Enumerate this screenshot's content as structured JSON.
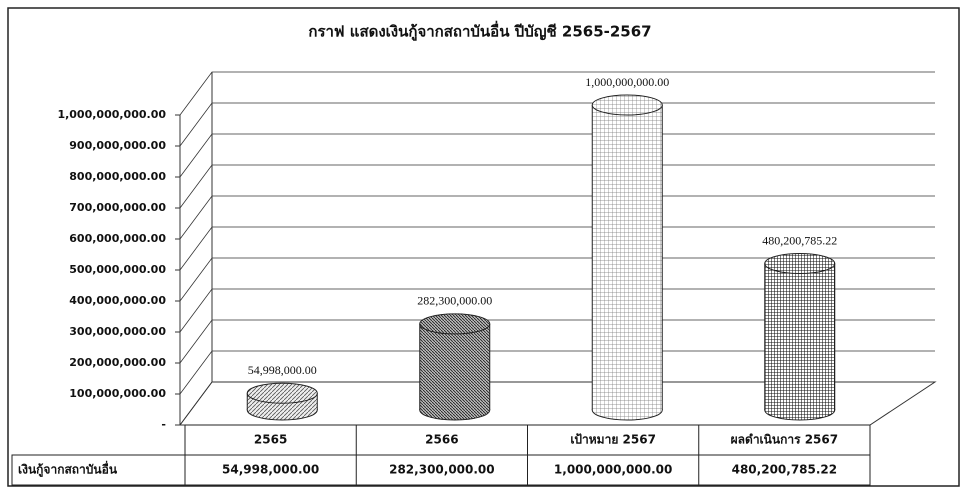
{
  "chart_data": {
    "type": "cylinder",
    "title": "กราฟ แสดงเงินกู้จากสถาบันอื่น  ปีบัญชี 2565-2567",
    "categories": [
      "2565",
      "2566",
      "เป้าหมาย 2567",
      "ผลดำเนินการ 2567"
    ],
    "series": [
      {
        "name": "เงินกู้จากสถาบันอื่น",
        "values": [
          54998000,
          282300000,
          1000000000,
          480200785.22
        ],
        "value_labels": [
          "54,998,000.00",
          "282,300,000.00",
          "1,000,000,000.00",
          "480,200,785.22"
        ]
      }
    ],
    "ylim": [
      0,
      1000000000
    ],
    "yticks": [
      {
        "value": 0,
        "label": "-"
      },
      {
        "value": 100000000,
        "label": "100,000,000.00"
      },
      {
        "value": 200000000,
        "label": "200,000,000.00"
      },
      {
        "value": 300000000,
        "label": "300,000,000.00"
      },
      {
        "value": 400000000,
        "label": "400,000,000.00"
      },
      {
        "value": 500000000,
        "label": "500,000,000.00"
      },
      {
        "value": 600000000,
        "label": "600,000,000.00"
      },
      {
        "value": 700000000,
        "label": "700,000,000.00"
      },
      {
        "value": 800000000,
        "label": "800,000,000.00"
      },
      {
        "value": 900000000,
        "label": "900,000,000.00"
      },
      {
        "value": 1000000000,
        "label": "1,000,000,000.00"
      }
    ],
    "grid": true,
    "data_table": true
  }
}
